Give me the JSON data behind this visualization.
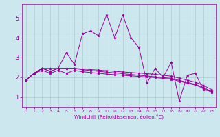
{
  "bg_color": "#cce8ee",
  "line_color": "#990099",
  "grid_color": "#aacccc",
  "xlabel": "Windchill (Refroidissement éolien,°C)",
  "xlim": [
    -0.5,
    23.5
  ],
  "ylim": [
    0.5,
    5.7
  ],
  "yticks": [
    1,
    2,
    3,
    4,
    5
  ],
  "xticks": [
    0,
    1,
    2,
    3,
    4,
    5,
    6,
    7,
    8,
    9,
    10,
    11,
    12,
    13,
    14,
    15,
    16,
    17,
    18,
    19,
    20,
    21,
    22,
    23
  ],
  "series": [
    [
      1.85,
      2.2,
      2.45,
      2.3,
      2.45,
      3.25,
      2.65,
      4.2,
      4.35,
      4.1,
      5.15,
      4.0,
      5.15,
      4.0,
      3.5,
      1.7,
      2.45,
      2.0,
      2.75,
      0.8,
      2.1,
      2.2,
      1.35,
      1.3
    ],
    [
      1.85,
      2.2,
      2.45,
      2.45,
      2.45,
      2.45,
      2.45,
      2.42,
      2.39,
      2.36,
      2.33,
      2.3,
      2.27,
      2.24,
      2.21,
      2.18,
      2.15,
      2.1,
      2.05,
      1.95,
      1.85,
      1.75,
      1.58,
      1.38
    ],
    [
      1.85,
      2.2,
      2.45,
      2.3,
      2.45,
      2.45,
      2.45,
      2.38,
      2.34,
      2.3,
      2.26,
      2.22,
      2.18,
      2.14,
      2.1,
      2.06,
      2.02,
      1.98,
      1.94,
      1.84,
      1.74,
      1.64,
      1.48,
      1.28
    ],
    [
      1.85,
      2.2,
      2.35,
      2.2,
      2.35,
      2.2,
      2.35,
      2.28,
      2.24,
      2.2,
      2.16,
      2.13,
      2.1,
      2.07,
      2.04,
      2.01,
      1.98,
      1.94,
      1.9,
      1.8,
      1.7,
      1.6,
      1.44,
      1.24
    ]
  ]
}
